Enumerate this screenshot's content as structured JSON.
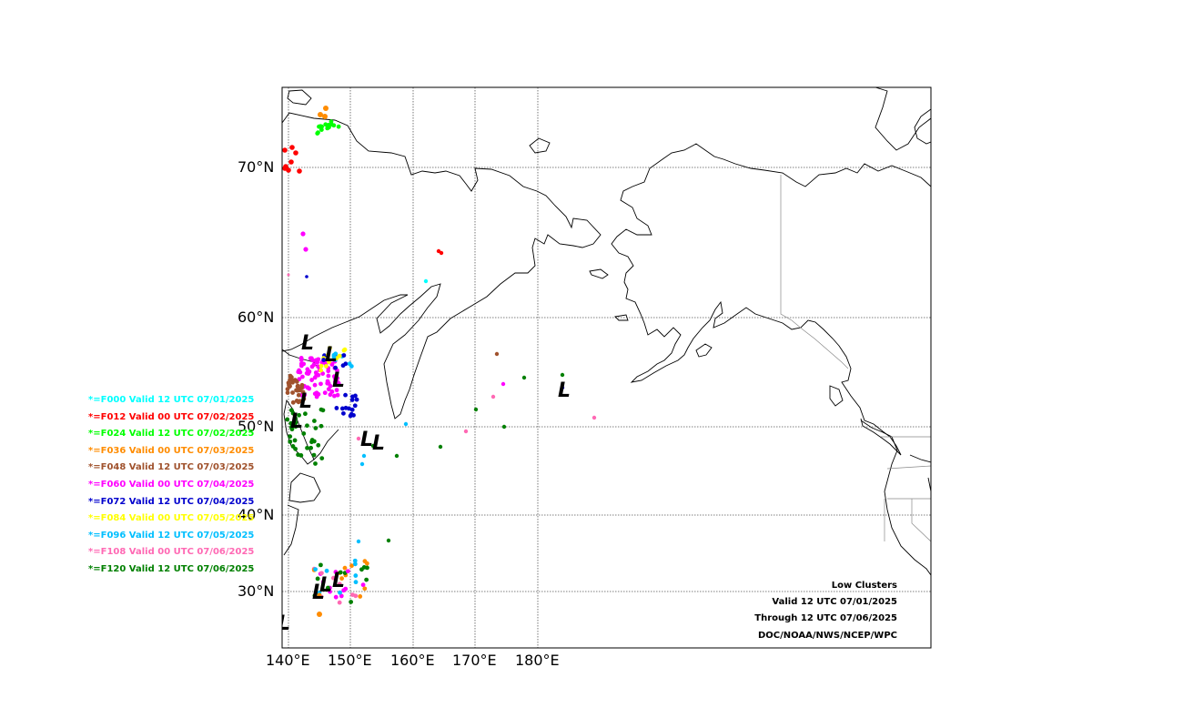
{
  "map": {
    "lat_labels": [
      "70°N",
      "60°N",
      "50°N",
      "40°N",
      "30°N"
    ],
    "lon_labels": [
      "140°E",
      "150°E",
      "160°E",
      "170°E",
      "180°E"
    ]
  },
  "legend": [
    {
      "label": "*=F000 Valid 12 UTC 07/01/2025",
      "color": "#00ffff"
    },
    {
      "label": "*=F012 Valid 00 UTC 07/02/2025",
      "color": "#ff0000"
    },
    {
      "label": "*=F024 Valid 12 UTC 07/02/2025",
      "color": "#00ff00"
    },
    {
      "label": "*=F036 Valid 00 UTC 07/03/2025",
      "color": "#ff8c00"
    },
    {
      "label": "*=F048 Valid 12 UTC 07/03/2025",
      "color": "#a0522d"
    },
    {
      "label": "*=F060 Valid 00 UTC 07/04/2025",
      "color": "#ff00ff"
    },
    {
      "label": "*=F072 Valid 12 UTC 07/04/2025",
      "color": "#0000cd"
    },
    {
      "label": "*=F084 Valid 00 UTC 07/05/2025",
      "color": "#ffff00"
    },
    {
      "label": "*=F096 Valid 12 UTC 07/05/2025",
      "color": "#00bfff"
    },
    {
      "label": "*=F108 Valid 00 UTC 07/06/2025",
      "color": "#ff69b4"
    },
    {
      "label": "*=F120 Valid 12 UTC 07/06/2025",
      "color": "#008000"
    }
  ],
  "credits": {
    "title": "Low Clusters",
    "valid": "Valid 12 UTC 07/01/2025",
    "through": "Through 12 UTC 07/06/2025",
    "source": "DOC/NOAA/NWS/NCEP/WPC"
  },
  "low_symbol": "L",
  "colors": {
    "frame": "#000000",
    "grid": "#555555",
    "coast": "#000000",
    "border": "#888888"
  }
}
